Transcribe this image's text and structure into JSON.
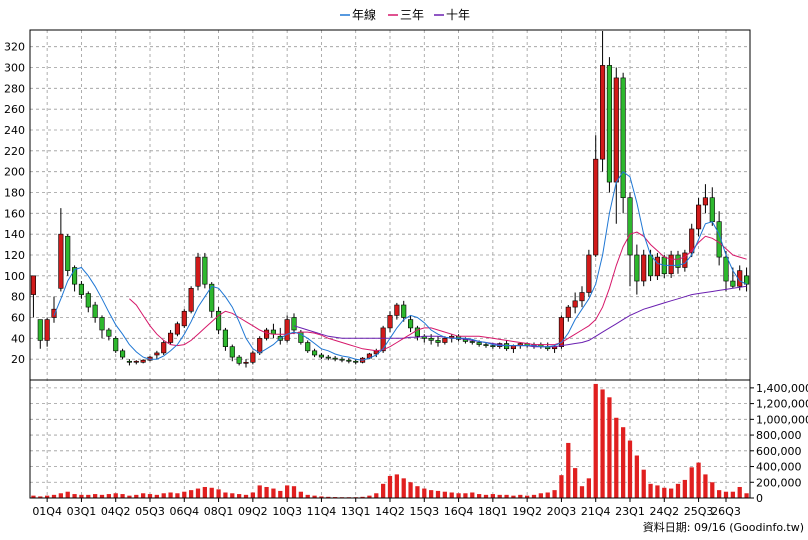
{
  "chart_data": {
    "type": "candlestick",
    "legend": [
      {
        "name": "年線",
        "color": "#1f77d4"
      },
      {
        "name": "三年",
        "color": "#d6186a"
      },
      {
        "name": "十年",
        "color": "#6a1fb0"
      }
    ],
    "colors": {
      "up": "#d11a1a",
      "down": "#2eb82e",
      "volume": "#e01f1f",
      "grid": "#9a9a9a"
    },
    "price_axis": {
      "min": 0,
      "max": 336,
      "ticks": [
        20,
        40,
        60,
        80,
        100,
        120,
        140,
        160,
        180,
        200,
        220,
        240,
        260,
        280,
        300,
        320
      ]
    },
    "volume_axis": {
      "min": 0,
      "max": 1500000,
      "ticks": [
        0,
        200000,
        400000,
        600000,
        800000,
        1000000,
        1200000,
        1400000
      ],
      "tick_labels": [
        "0",
        "200,000",
        "400,000",
        "600,000",
        "800,000",
        "1,000,000",
        "1,200,000",
        "1,400,000"
      ]
    },
    "x_labels": [
      {
        "label": "01Q4",
        "index": 2
      },
      {
        "label": "03Q1",
        "index": 7
      },
      {
        "label": "04Q2",
        "index": 12
      },
      {
        "label": "05Q3",
        "index": 17
      },
      {
        "label": "06Q4",
        "index": 22
      },
      {
        "label": "08Q1",
        "index": 27
      },
      {
        "label": "09Q2",
        "index": 32
      },
      {
        "label": "10Q3",
        "index": 37
      },
      {
        "label": "11Q4",
        "index": 42
      },
      {
        "label": "13Q1",
        "index": 47
      },
      {
        "label": "14Q2",
        "index": 52
      },
      {
        "label": "15Q3",
        "index": 57
      },
      {
        "label": "16Q4",
        "index": 62
      },
      {
        "label": "18Q1",
        "index": 67
      },
      {
        "label": "19Q2",
        "index": 72
      },
      {
        "label": "20Q3",
        "index": 77
      },
      {
        "label": "21Q4",
        "index": 82
      },
      {
        "label": "23Q1",
        "index": 87
      },
      {
        "label": "24Q2",
        "index": 92
      },
      {
        "label": "25Q3",
        "index": 97
      },
      {
        "label": "26Q3",
        "index": 101
      }
    ],
    "ohlc": [
      [
        82,
        100,
        60,
        100
      ],
      [
        58,
        58,
        30,
        38
      ],
      [
        38,
        60,
        32,
        58
      ],
      [
        60,
        80,
        55,
        68
      ],
      [
        88,
        165,
        85,
        140
      ],
      [
        138,
        140,
        100,
        105
      ],
      [
        108,
        110,
        85,
        92
      ],
      [
        92,
        95,
        78,
        82
      ],
      [
        83,
        85,
        65,
        70
      ],
      [
        72,
        75,
        55,
        60
      ],
      [
        60,
        62,
        40,
        48
      ],
      [
        48,
        50,
        38,
        42
      ],
      [
        40,
        42,
        26,
        28
      ],
      [
        28,
        30,
        20,
        22
      ],
      [
        18,
        20,
        14,
        17
      ],
      [
        17,
        19,
        15,
        18
      ],
      [
        17,
        20,
        16,
        19
      ],
      [
        19,
        23,
        18,
        22
      ],
      [
        24,
        28,
        20,
        26
      ],
      [
        26,
        38,
        24,
        36
      ],
      [
        36,
        48,
        34,
        45
      ],
      [
        44,
        56,
        42,
        54
      ],
      [
        52,
        68,
        50,
        66
      ],
      [
        66,
        90,
        64,
        88
      ],
      [
        90,
        122,
        86,
        118
      ],
      [
        118,
        122,
        88,
        92
      ],
      [
        92,
        94,
        60,
        66
      ],
      [
        66,
        70,
        44,
        48
      ],
      [
        48,
        50,
        28,
        32
      ],
      [
        32,
        34,
        18,
        22
      ],
      [
        22,
        24,
        14,
        16
      ],
      [
        16,
        20,
        12,
        17
      ],
      [
        17,
        28,
        15,
        26
      ],
      [
        26,
        42,
        24,
        40
      ],
      [
        40,
        50,
        38,
        48
      ],
      [
        48,
        54,
        40,
        44
      ],
      [
        42,
        50,
        34,
        38
      ],
      [
        38,
        62,
        36,
        58
      ],
      [
        60,
        64,
        44,
        48
      ],
      [
        46,
        48,
        34,
        36
      ],
      [
        36,
        38,
        26,
        28
      ],
      [
        28,
        30,
        22,
        24
      ],
      [
        24,
        26,
        20,
        22
      ],
      [
        22,
        24,
        19,
        21
      ],
      [
        21,
        23,
        18,
        20
      ],
      [
        20,
        22,
        17,
        19
      ],
      [
        19,
        21,
        16,
        18
      ],
      [
        18,
        20,
        15,
        17
      ],
      [
        17,
        22,
        16,
        21
      ],
      [
        21,
        26,
        20,
        25
      ],
      [
        25,
        30,
        22,
        28
      ],
      [
        28,
        52,
        26,
        50
      ],
      [
        50,
        66,
        46,
        62
      ],
      [
        62,
        74,
        58,
        72
      ],
      [
        72,
        76,
        56,
        60
      ],
      [
        58,
        62,
        46,
        50
      ],
      [
        50,
        52,
        38,
        42
      ],
      [
        42,
        44,
        36,
        40
      ],
      [
        40,
        44,
        34,
        38
      ],
      [
        38,
        42,
        32,
        36
      ],
      [
        36,
        42,
        34,
        40
      ],
      [
        40,
        44,
        36,
        42
      ],
      [
        42,
        44,
        37,
        39
      ],
      [
        39,
        41,
        35,
        37
      ],
      [
        37,
        39,
        34,
        36
      ],
      [
        36,
        38,
        32,
        34
      ],
      [
        34,
        36,
        31,
        33
      ],
      [
        33,
        35,
        30,
        32
      ],
      [
        32,
        36,
        30,
        35
      ],
      [
        35,
        38,
        28,
        30
      ],
      [
        30,
        34,
        26,
        33
      ],
      [
        33,
        36,
        30,
        35
      ],
      [
        35,
        36,
        31,
        33
      ],
      [
        33,
        36,
        30,
        34
      ],
      [
        34,
        36,
        30,
        32
      ],
      [
        32,
        36,
        28,
        30
      ],
      [
        30,
        34,
        26,
        32
      ],
      [
        32,
        62,
        30,
        60
      ],
      [
        60,
        72,
        56,
        70
      ],
      [
        70,
        84,
        64,
        76
      ],
      [
        76,
        90,
        70,
        84
      ],
      [
        84,
        125,
        80,
        120
      ],
      [
        120,
        235,
        118,
        212
      ],
      [
        212,
        335,
        200,
        302
      ],
      [
        302,
        310,
        180,
        190
      ],
      [
        190,
        300,
        150,
        290
      ],
      [
        290,
        295,
        160,
        175
      ],
      [
        175,
        180,
        90,
        120
      ],
      [
        120,
        130,
        82,
        95
      ],
      [
        95,
        125,
        90,
        120
      ],
      [
        120,
        125,
        95,
        100
      ],
      [
        100,
        122,
        96,
        118
      ],
      [
        118,
        120,
        98,
        102
      ],
      [
        102,
        124,
        98,
        120
      ],
      [
        120,
        124,
        102,
        108
      ],
      [
        108,
        125,
        104,
        122
      ],
      [
        122,
        150,
        118,
        145
      ],
      [
        145,
        175,
        138,
        168
      ],
      [
        168,
        188,
        160,
        175
      ],
      [
        175,
        185,
        148,
        152
      ],
      [
        152,
        162,
        110,
        118
      ],
      [
        118,
        124,
        85,
        95
      ],
      [
        95,
        108,
        88,
        90
      ],
      [
        90,
        110,
        86,
        105
      ],
      [
        100,
        108,
        85,
        92
      ]
    ],
    "volume": [
      30000,
      20000,
      30000,
      40000,
      60000,
      80000,
      50000,
      40000,
      40000,
      50000,
      40000,
      50000,
      60000,
      50000,
      30000,
      40000,
      60000,
      50000,
      40000,
      60000,
      70000,
      60000,
      80000,
      100000,
      120000,
      140000,
      130000,
      110000,
      70000,
      60000,
      50000,
      40000,
      70000,
      160000,
      140000,
      120000,
      90000,
      160000,
      150000,
      80000,
      40000,
      30000,
      20000,
      15000,
      12000,
      10000,
      10000,
      10000,
      15000,
      30000,
      60000,
      180000,
      280000,
      300000,
      250000,
      200000,
      150000,
      120000,
      100000,
      90000,
      80000,
      70000,
      60000,
      60000,
      70000,
      50000,
      40000,
      50000,
      40000,
      40000,
      30000,
      40000,
      30000,
      40000,
      60000,
      70000,
      100000,
      290000,
      700000,
      380000,
      150000,
      250000,
      1450000,
      1380000,
      1280000,
      1020000,
      900000,
      730000,
      540000,
      360000,
      180000,
      160000,
      130000,
      120000,
      180000,
      230000,
      390000,
      450000,
      300000,
      200000,
      100000,
      80000,
      80000,
      140000,
      60000
    ],
    "ma_year": [
      null,
      null,
      null,
      62,
      78,
      95,
      106,
      108,
      100,
      90,
      78,
      65,
      53,
      44,
      34,
      27,
      22,
      20,
      20,
      23,
      28,
      34,
      44,
      56,
      70,
      80,
      90,
      88,
      80,
      70,
      56,
      40,
      30,
      26,
      30,
      34,
      40,
      44,
      46,
      44,
      40,
      35,
      30,
      28,
      25,
      23,
      22,
      20,
      19,
      21,
      24,
      30,
      40,
      50,
      58,
      62,
      60,
      55,
      48,
      44,
      41,
      40,
      40,
      40,
      39,
      37,
      36,
      34,
      33,
      33,
      33,
      33,
      33,
      33,
      32,
      32,
      33,
      36,
      45,
      58,
      68,
      78,
      92,
      120,
      160,
      190,
      200,
      195,
      170,
      140,
      120,
      112,
      110,
      110,
      110,
      112,
      120,
      135,
      150,
      152,
      140,
      120,
      105,
      95,
      92
    ],
    "ma_3year": [
      null,
      null,
      null,
      null,
      null,
      null,
      null,
      null,
      null,
      null,
      null,
      null,
      null,
      null,
      78,
      72,
      62,
      52,
      44,
      38,
      34,
      33,
      34,
      38,
      44,
      50,
      56,
      62,
      66,
      64,
      60,
      56,
      52,
      48,
      45,
      44,
      44,
      44,
      45,
      46,
      46,
      45,
      43,
      40,
      38,
      36,
      34,
      32,
      30,
      29,
      28,
      29,
      32,
      36,
      40,
      44,
      48,
      50,
      50,
      48,
      46,
      44,
      42,
      42,
      42,
      42,
      41,
      40,
      39,
      38,
      37,
      36,
      35,
      34,
      34,
      34,
      34,
      36,
      40,
      44,
      48,
      52,
      58,
      70,
      88,
      110,
      128,
      140,
      142,
      138,
      130,
      124,
      118,
      116,
      116,
      118,
      124,
      132,
      138,
      136,
      132,
      126,
      120,
      118,
      116
    ],
    "ma_10year": [
      null,
      null,
      null,
      null,
      null,
      null,
      null,
      null,
      null,
      null,
      null,
      null,
      null,
      null,
      null,
      null,
      null,
      null,
      null,
      null,
      null,
      null,
      null,
      null,
      null,
      null,
      null,
      null,
      null,
      null,
      null,
      null,
      null,
      null,
      null,
      null,
      null,
      null,
      52,
      50,
      48,
      46,
      44,
      42,
      41,
      40,
      40,
      40,
      40,
      40,
      40,
      40,
      40,
      40,
      40,
      41,
      41,
      42,
      42,
      42,
      41,
      40,
      40,
      39,
      38,
      37,
      36,
      35,
      34,
      33,
      33,
      33,
      33,
      32,
      32,
      32,
      32,
      33,
      34,
      35,
      36,
      38,
      42,
      46,
      50,
      54,
      58,
      62,
      65,
      68,
      70,
      72,
      74,
      76,
      78,
      80,
      82,
      83,
      84,
      85,
      86,
      87,
      88,
      89,
      90
    ],
    "note": "資料日期: 09/16 (Goodinfo.tw)"
  }
}
